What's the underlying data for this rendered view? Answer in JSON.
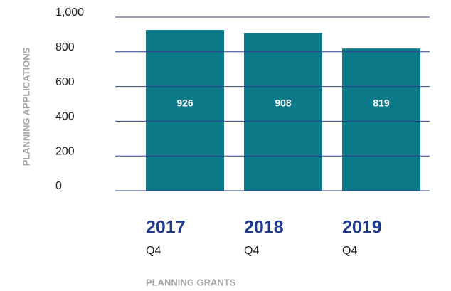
{
  "chart_data": {
    "type": "bar",
    "y_label": "PLANNING APPLICATIONS",
    "x_label": "PLANNING GRANTS",
    "categories": [
      "2017",
      "2018",
      "2019"
    ],
    "sublabels": [
      "Q4",
      "Q4",
      "Q4"
    ],
    "values": [
      926,
      908,
      819
    ],
    "color": "#0d7a89",
    "grid_color": "#2c3e8c",
    "ylim": [
      0,
      1000
    ],
    "yticks": [
      0,
      200,
      400,
      600,
      800,
      {
        "value": 1000,
        "label": "1,000"
      }
    ],
    "grid": true
  }
}
